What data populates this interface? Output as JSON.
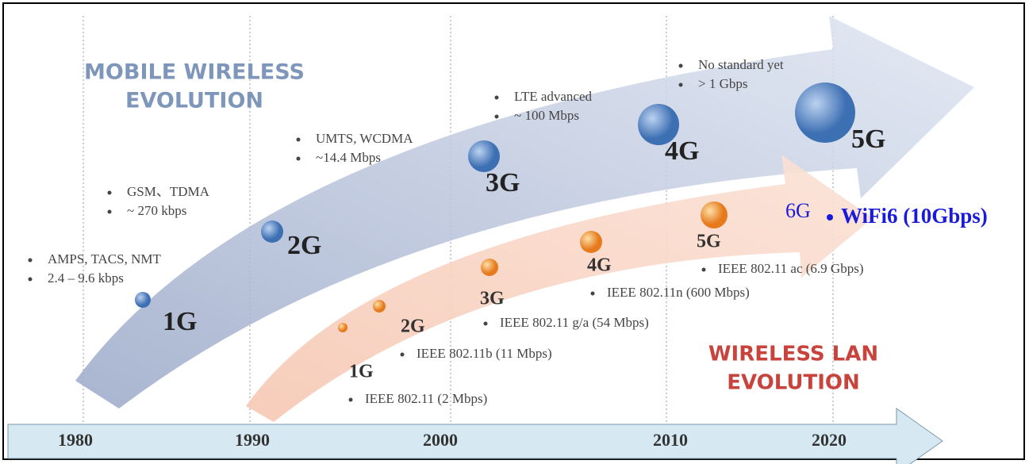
{
  "mobile": {
    "title": [
      "MOBILE WIRELESS",
      "EVOLUTION"
    ],
    "generations": [
      {
        "label": "1G",
        "notes": [
          "AMPS, TACS, NMT",
          "2.4 – 9.6 kbps"
        ]
      },
      {
        "label": "2G",
        "notes": [
          "GSM、TDMA",
          "~ 270 kbps"
        ]
      },
      {
        "label": "3G",
        "notes": [
          "UMTS, WCDMA",
          "~14.4 Mbps"
        ]
      },
      {
        "label": "4G",
        "notes": [
          "LTE advanced",
          "~ 100 Mbps"
        ]
      },
      {
        "label": "5G",
        "notes": [
          "No standard yet",
          "> 1 Gbps"
        ]
      }
    ]
  },
  "wlan": {
    "title": [
      "WIRELESS LAN",
      "EVOLUTION"
    ],
    "generations": [
      {
        "label": "1G",
        "note": "IEEE 802.11 (2 Mbps)"
      },
      {
        "label": "2G",
        "note": "IEEE 802.11b (11 Mbps)"
      },
      {
        "label": "3G",
        "note": "IEEE 802.11 g/a (54 Mbps)"
      },
      {
        "label": "4G",
        "note": "IEEE 802.11n (600 Mbps)"
      },
      {
        "label": "5G",
        "note": "IEEE 802.11 ac (6.9 Gbps)"
      }
    ],
    "next": {
      "label": "6G",
      "note": "WiFi6 (10Gbps)"
    }
  },
  "timeline": [
    "1980",
    "1990",
    "2000",
    "2010",
    "2020"
  ]
}
